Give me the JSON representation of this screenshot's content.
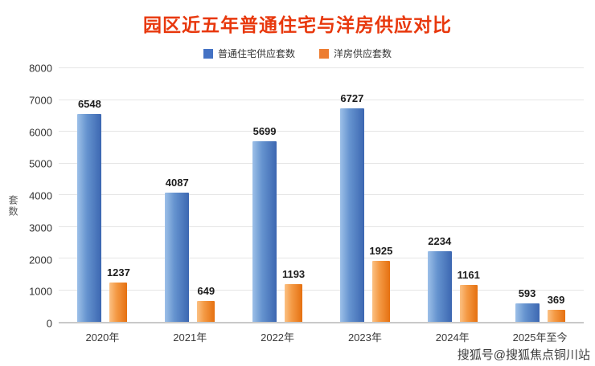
{
  "chart_data": {
    "type": "bar",
    "title": "园区近五年普通住宅与洋房供应对比",
    "xlabel": "",
    "ylabel": "套数",
    "categories": [
      "2020年",
      "2021年",
      "2022年",
      "2023年",
      "2024年",
      "2025年至今"
    ],
    "series": [
      {
        "name": "普通住宅供应套数",
        "color": "#4472c4",
        "values": [
          6548,
          4087,
          5699,
          6727,
          2234,
          593
        ]
      },
      {
        "name": "洋房供应套数",
        "color": "#ed7d31",
        "values": [
          1237,
          649,
          1193,
          1925,
          1161,
          369
        ]
      }
    ],
    "ylim": [
      0,
      8000
    ],
    "ytick_step": 1000,
    "grid": true,
    "legend_position": "top"
  },
  "colors": {
    "title": "#e8380d",
    "grid": "#e5e5e5",
    "axis": "#c9c9c9"
  },
  "watermark": "搜狐号@搜狐焦点铜川站"
}
